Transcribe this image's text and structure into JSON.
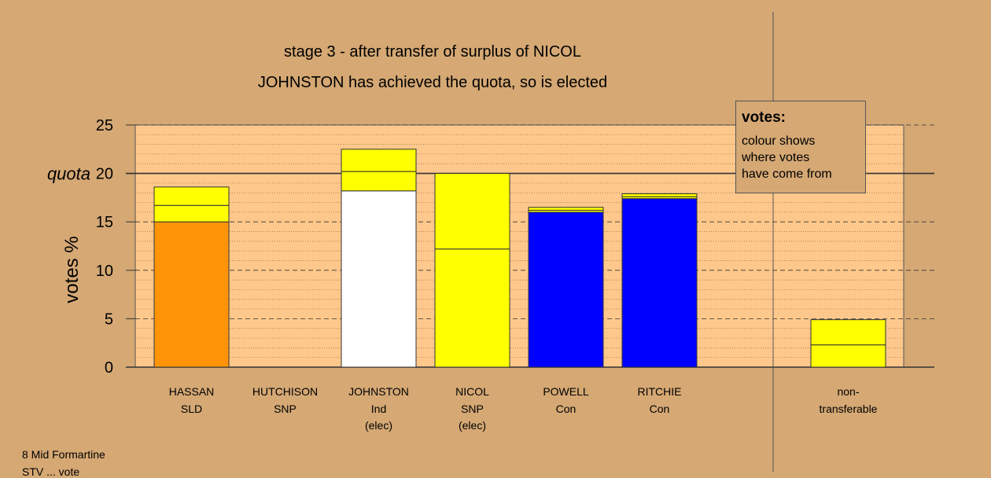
{
  "title_line1": "stage 3 - after transfer of surplus of NICOL",
  "title_line2": "JOHNSTON has achieved the quota, so is elected",
  "legend": {
    "title": "votes:",
    "line1": "colour shows",
    "line2": "where votes",
    "line3": "have come from"
  },
  "footer": {
    "line1": "8 Mid Formartine",
    "line2": "STV ... vote"
  },
  "chart_data": {
    "type": "bar",
    "ylabel": "votes %",
    "ylim": [
      0,
      25
    ],
    "yticks": [
      0,
      5,
      10,
      15,
      20,
      25
    ],
    "quota": 20,
    "quota_label": "quota",
    "grid": true,
    "colors": {
      "orange": "#ff9408",
      "yellow": "#ffff00",
      "white": "#ffffff",
      "blue": "#0000ff",
      "plot_bg": "#fec88c",
      "bg": "#d5a874"
    },
    "candidates": [
      {
        "name": "HASSAN",
        "party": "SLD",
        "status": "",
        "segments": [
          {
            "value": 15.0,
            "color": "#ff9408"
          },
          {
            "value": 1.7,
            "color": "#ffff00"
          },
          {
            "value": 1.9,
            "color": "#ffff00"
          }
        ]
      },
      {
        "name": "HUTCHISON",
        "party": "SNP",
        "status": "",
        "segments": []
      },
      {
        "name": "JOHNSTON",
        "party": "Ind",
        "status": "(elec)",
        "segments": [
          {
            "value": 18.2,
            "color": "#ffffff"
          },
          {
            "value": 2.0,
            "color": "#ffff00"
          },
          {
            "value": 2.3,
            "color": "#ffff00"
          }
        ]
      },
      {
        "name": "NICOL",
        "party": "SNP",
        "status": "(elec)",
        "segments": [
          {
            "value": 12.2,
            "color": "#ffff00"
          },
          {
            "value": 7.8,
            "color": "#ffff00"
          }
        ]
      },
      {
        "name": "POWELL",
        "party": "Con",
        "status": "",
        "segments": [
          {
            "value": 16.0,
            "color": "#0000ff"
          },
          {
            "value": 0.2,
            "color": "#ffff00"
          },
          {
            "value": 0.3,
            "color": "#ffff00"
          }
        ]
      },
      {
        "name": "RITCHIE",
        "party": "Con",
        "status": "",
        "segments": [
          {
            "value": 17.4,
            "color": "#0000ff"
          },
          {
            "value": 0.2,
            "color": "#ffff00"
          },
          {
            "value": 0.3,
            "color": "#ffff00"
          }
        ]
      }
    ],
    "nontransferable": {
      "label1": "non-",
      "label2": "transferable",
      "segments": [
        {
          "value": 2.3,
          "color": "#ffff00"
        },
        {
          "value": 2.6,
          "color": "#ffff00"
        }
      ]
    }
  }
}
